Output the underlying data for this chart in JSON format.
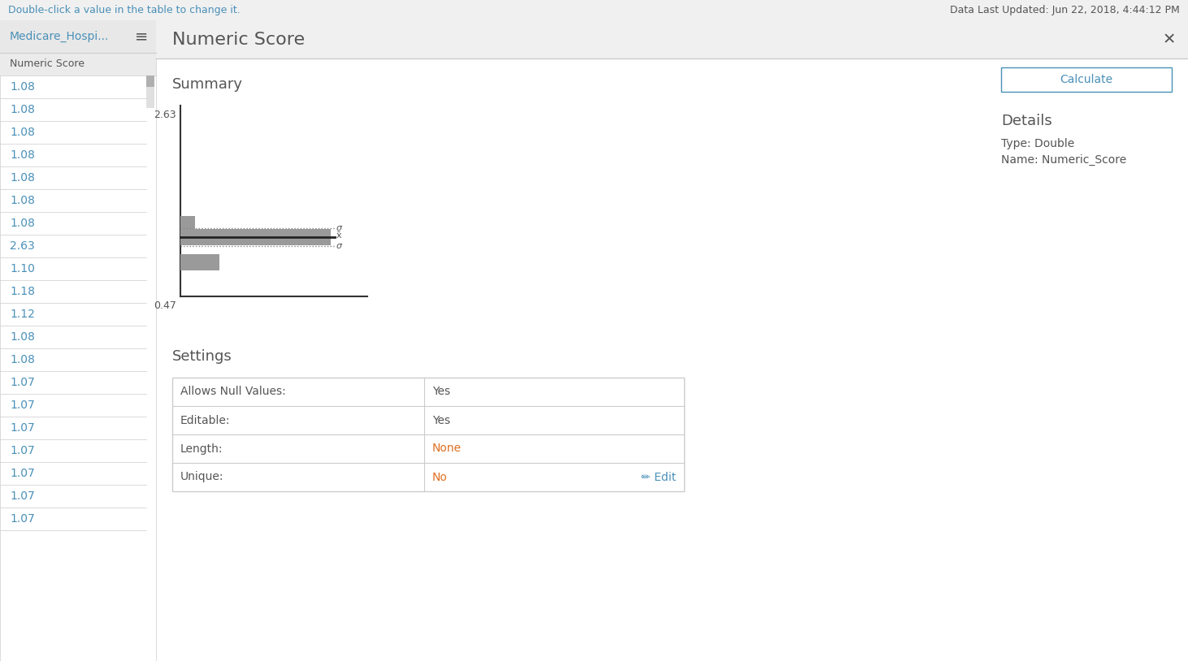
{
  "title": "Numeric Score",
  "header_text": "Double-click a value in the table to change it.",
  "date_text": "Data Last Updated: Jun 22, 2018, 4:44:12 PM",
  "table_header": "Medicare_Hospi...",
  "column_name": "Numeric Score",
  "table_values": [
    "1.08",
    "1.08",
    "1.08",
    "1.08",
    "1.08",
    "1.08",
    "1.08",
    "2.63",
    "1.10",
    "1.18",
    "1.12",
    "1.08",
    "1.08",
    "1.07",
    "1.07",
    "1.07",
    "1.07",
    "1.07",
    "1.07",
    "1.07"
  ],
  "summary_title": "Summary",
  "y_max_label": "2.63",
  "y_min_label": "0.47",
  "calculate_btn_text": "Calculate",
  "details_title": "Details",
  "type_text": "Type: Double",
  "name_text": "Name: Numeric_Score",
  "settings_title": "Settings",
  "settings_rows": [
    {
      "label": "Allows Null Values:",
      "value": "Yes",
      "value_color": "#555555"
    },
    {
      "label": "Editable:",
      "value": "Yes",
      "value_color": "#555555"
    },
    {
      "label": "Length:",
      "value": "None",
      "value_color": "#e07020"
    },
    {
      "label": "Unique:",
      "value": "No",
      "value_color": "#e07020"
    }
  ],
  "edit_text": "✏ Edit",
  "bg_color": "#ffffff",
  "header_bg": "#f0f0f0",
  "table_header_bg": "#e8e8e8",
  "col_name_bg": "#ebebeb",
  "panel_title_bg": "#f0f0f0",
  "border_color": "#cccccc",
  "bar_color": "#9a9a9a",
  "text_color": "#555555",
  "blue_text": "#4a90b8",
  "orange_text": "#e07020",
  "mean_line_color": "#333333",
  "dotted_line_color": "#888888",
  "scrollbar_track": "#e0e0e0",
  "scrollbar_thumb": "#b0b0b0"
}
